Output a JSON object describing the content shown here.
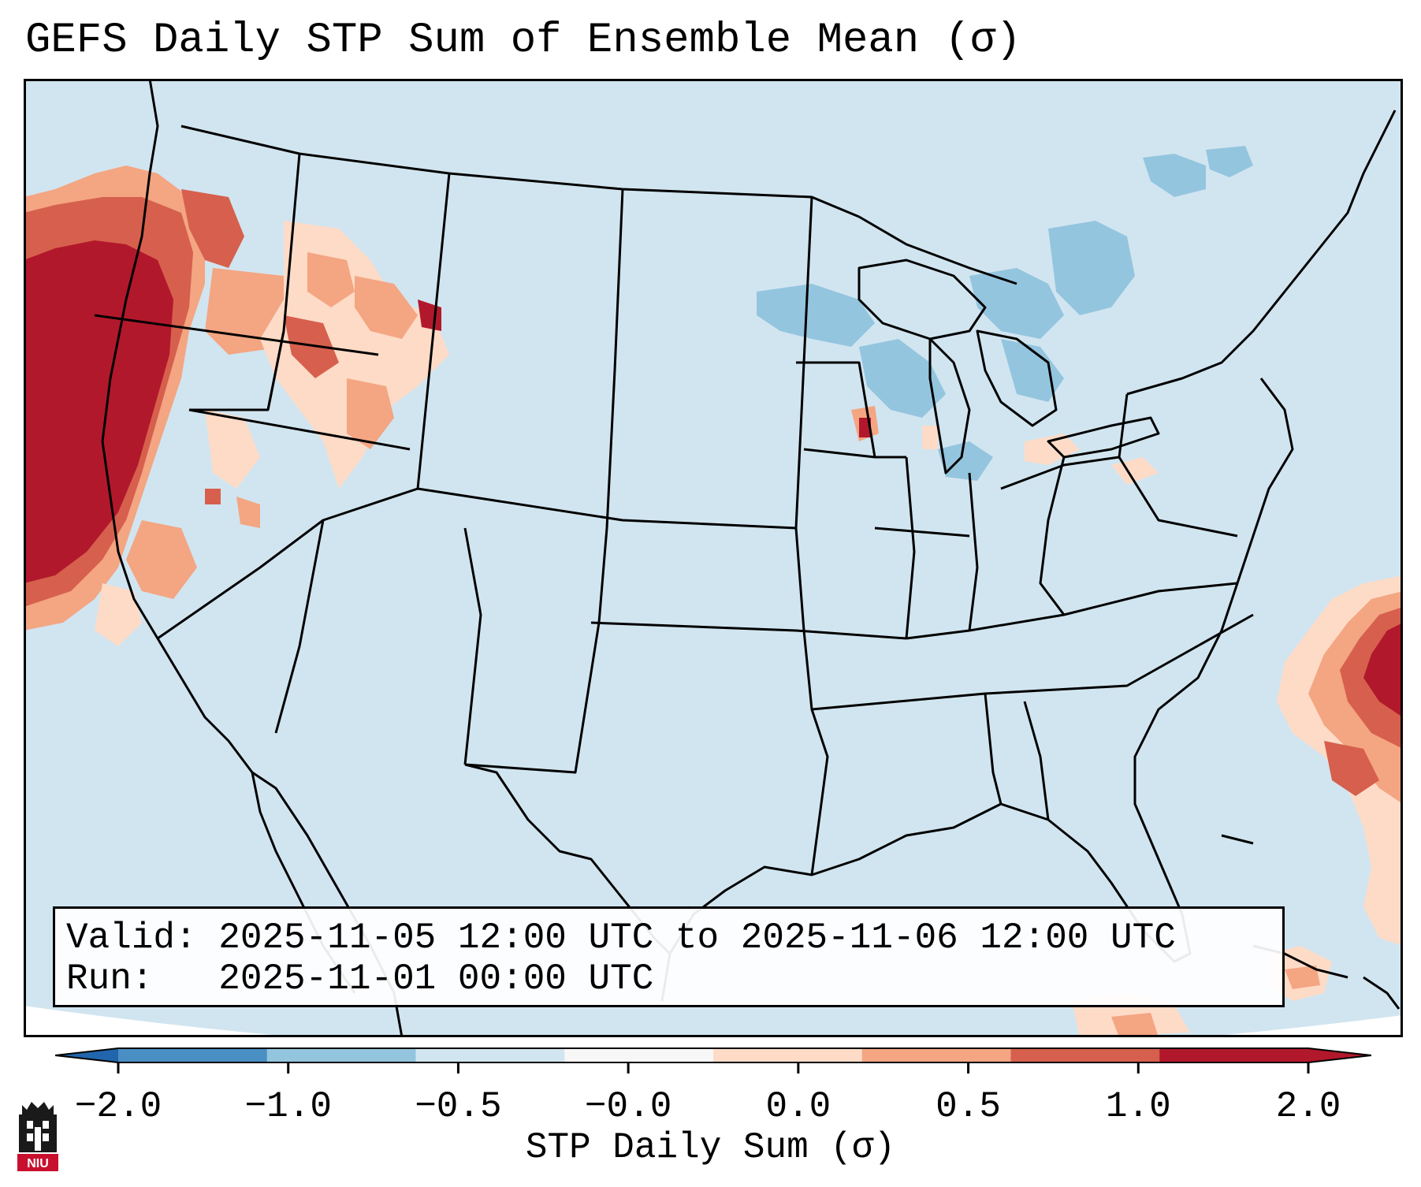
{
  "title": "GEFS Daily STP Sum of Ensemble Mean (σ)",
  "info": {
    "valid": "Valid: 2025-11-05 12:00 UTC to 2025-11-06 12:00 UTC",
    "run": "Run:   2025-11-01 00:00 UTC"
  },
  "colorbar": {
    "label": "STP Daily Sum (σ)",
    "ticks": [
      "−2.0",
      "−1.0",
      "−0.5",
      "−0.0",
      "0.0",
      "0.5",
      "1.0",
      "2.0"
    ],
    "colors": [
      "#4a8fc4",
      "#94c5df",
      "#d1e5f0",
      "#f7f7f7",
      "#fddbc7",
      "#f4a582",
      "#d6604d",
      "#b2182b"
    ],
    "under_color": "#2166ac",
    "over_color": "#b2182b"
  },
  "map": {
    "background_color": "#d1e5f0",
    "border_color": "#000000",
    "highlight_regions": [
      {
        "name": "Pacific Northwest / California coast",
        "level": "2.0"
      },
      {
        "name": "Idaho / Oregon interior",
        "level": "1.0"
      },
      {
        "name": "Western Atlantic",
        "level": "2.0"
      },
      {
        "name": "Lake Michigan shore",
        "level": "2.0"
      },
      {
        "name": "Great Lakes / New England",
        "level": "-0.5"
      },
      {
        "name": "Caribbean",
        "level": "0.5"
      }
    ]
  },
  "logo": {
    "text": "NIU",
    "color": "#c8102e"
  }
}
